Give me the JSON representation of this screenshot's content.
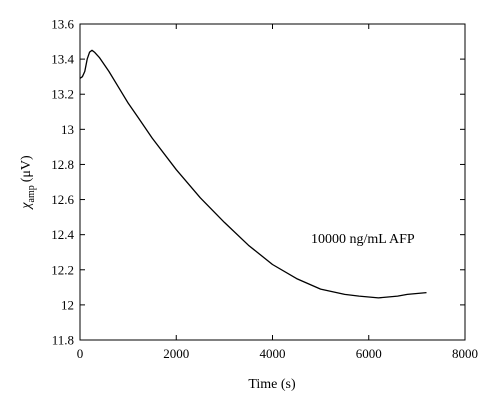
{
  "chart_data": {
    "type": "line",
    "title": "",
    "xlabel": "Time (s)",
    "ylabel_main": "χ",
    "ylabel_sub": "amp",
    "ylabel_unit": "(μV)",
    "xlim": [
      0,
      8000
    ],
    "ylim": [
      11.8,
      13.6
    ],
    "xticks": [
      0,
      2000,
      4000,
      6000,
      8000
    ],
    "yticks": [
      11.8,
      12,
      12.2,
      12.4,
      12.6,
      12.8,
      13,
      13.2,
      13.4,
      13.6
    ],
    "xtick_labels": [
      "0",
      "2000",
      "4000",
      "6000",
      "8000"
    ],
    "ytick_labels": [
      "11.8",
      "12",
      "12.2",
      "12.4",
      "12.6",
      "12.8",
      "13",
      "13.2",
      "13.4",
      "13.6"
    ],
    "grid": false,
    "annotation": "10000 ng/mL AFP",
    "series": [
      {
        "color": "#000000",
        "x": [
          0,
          50,
          100,
          150,
          200,
          250,
          300,
          400,
          500,
          600,
          800,
          1000,
          1200,
          1500,
          2000,
          2500,
          3000,
          3500,
          4000,
          4500,
          5000,
          5500,
          5800,
          6000,
          6200,
          6400,
          6600,
          6800,
          7000,
          7200
        ],
        "y": [
          13.29,
          13.3,
          13.33,
          13.4,
          13.44,
          13.45,
          13.44,
          13.41,
          13.37,
          13.33,
          13.24,
          13.15,
          13.07,
          12.95,
          12.77,
          12.61,
          12.47,
          12.34,
          12.23,
          12.15,
          12.09,
          12.06,
          12.05,
          12.045,
          12.04,
          12.045,
          12.05,
          12.06,
          12.065,
          12.07
        ]
      }
    ]
  }
}
